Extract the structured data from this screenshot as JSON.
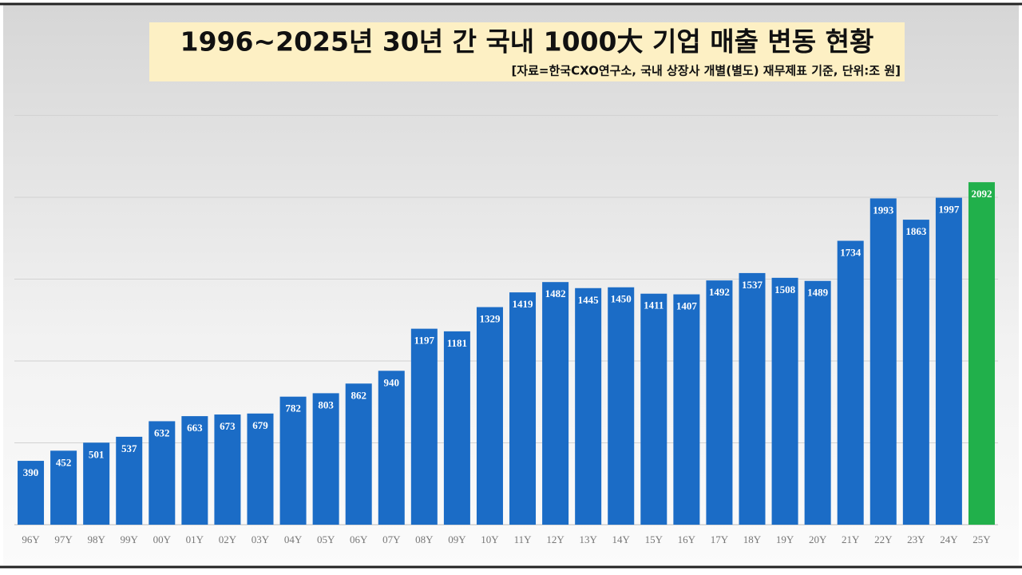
{
  "chart_data": {
    "type": "bar",
    "title": "1996~2025년 30년 간 국내 1000大 기업 매출 변동 현황",
    "subtitle": "[자료=한국CXO연구소, 국내 상장사 개별(별도) 재무제표 기준, 단위:조 원]",
    "categories": [
      "96Y",
      "97Y",
      "98Y",
      "99Y",
      "00Y",
      "01Y",
      "02Y",
      "03Y",
      "04Y",
      "05Y",
      "06Y",
      "07Y",
      "08Y",
      "09Y",
      "10Y",
      "11Y",
      "12Y",
      "13Y",
      "14Y",
      "15Y",
      "16Y",
      "17Y",
      "18Y",
      "19Y",
      "20Y",
      "21Y",
      "22Y",
      "23Y",
      "24Y",
      "25Y"
    ],
    "values": [
      390,
      452,
      501,
      537,
      632,
      663,
      673,
      679,
      782,
      803,
      862,
      940,
      1197,
      1181,
      1329,
      1419,
      1482,
      1445,
      1450,
      1411,
      1407,
      1492,
      1537,
      1508,
      1489,
      1734,
      1993,
      1863,
      1997,
      2092
    ],
    "colors": [
      "#1b6cc6",
      "#1b6cc6",
      "#1b6cc6",
      "#1b6cc6",
      "#1b6cc6",
      "#1b6cc6",
      "#1b6cc6",
      "#1b6cc6",
      "#1b6cc6",
      "#1b6cc6",
      "#1b6cc6",
      "#1b6cc6",
      "#1b6cc6",
      "#1b6cc6",
      "#1b6cc6",
      "#1b6cc6",
      "#1b6cc6",
      "#1b6cc6",
      "#1b6cc6",
      "#1b6cc6",
      "#1b6cc6",
      "#1b6cc6",
      "#1b6cc6",
      "#1b6cc6",
      "#1b6cc6",
      "#1b6cc6",
      "#1b6cc6",
      "#1b6cc6",
      "#1b6cc6",
      "#21b04b"
    ],
    "ylim": [
      0,
      3000
    ],
    "yticks": [
      500,
      1000,
      1500,
      2000,
      2500
    ],
    "grid": true
  }
}
